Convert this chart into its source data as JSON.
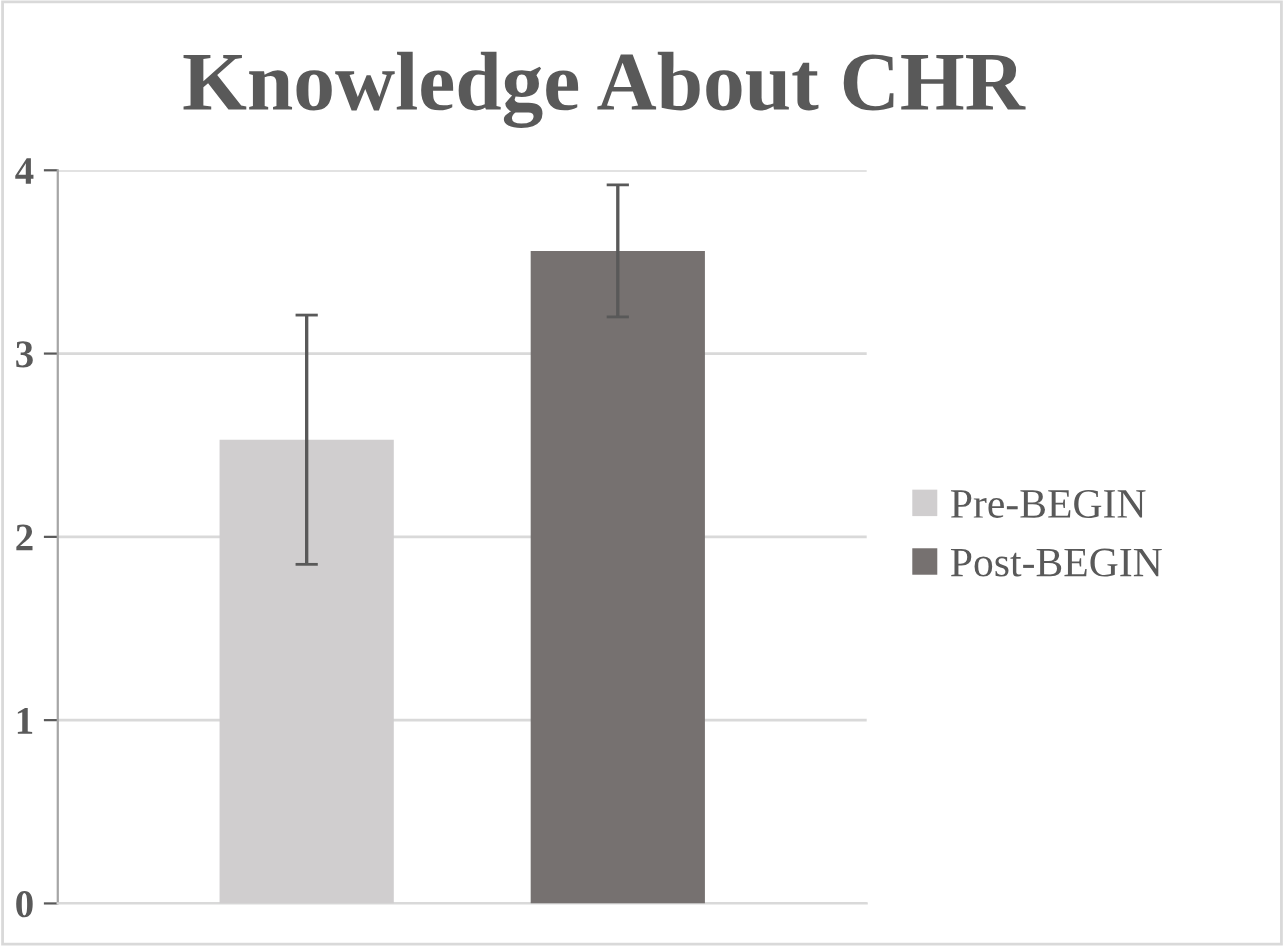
{
  "chart_data": {
    "type": "bar",
    "title": "Knowledge About CHR",
    "categories": [
      null
    ],
    "series": [
      {
        "name": "Pre-BEGIN",
        "color": "#d0cecf",
        "values": [
          2.53
        ],
        "errors": [
          0.68
        ]
      },
      {
        "name": "Post-BEGIN",
        "color": "#767170",
        "values": [
          3.56
        ],
        "errors": [
          0.36
        ]
      }
    ],
    "ylim": [
      0,
      4
    ],
    "yticks": [
      0,
      1,
      2,
      3,
      4
    ],
    "grid": "y",
    "legend": "right"
  }
}
